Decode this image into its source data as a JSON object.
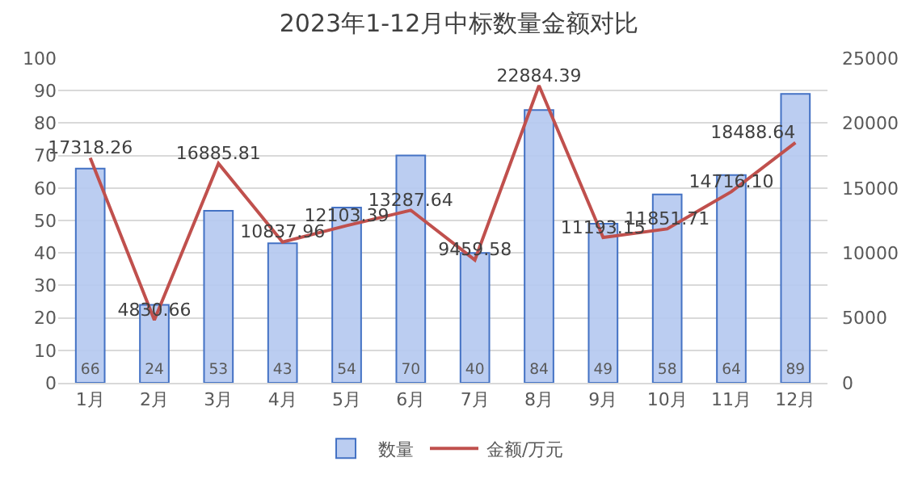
{
  "chart_data": {
    "type": "bar",
    "title": "2023年1-12月中标数量金额对比",
    "categories": [
      "1月",
      "2月",
      "3月",
      "4月",
      "5月",
      "6月",
      "7月",
      "8月",
      "9月",
      "10月",
      "11月",
      "12月"
    ],
    "series": [
      {
        "name": "数量",
        "color": "#4472c4",
        "values": [
          66,
          24,
          53,
          43,
          54,
          70,
          40,
          84,
          49,
          58,
          64,
          89
        ]
      },
      {
        "name": "金额/万元",
        "type": "line",
        "axis": "y2",
        "color": "#c0504d",
        "values": [
          17318.26,
          4830.66,
          16885.81,
          10837.96,
          12103.39,
          13287.64,
          9459.58,
          22884.39,
          11193.15,
          11851.71,
          14716.1,
          18488.64
        ],
        "value_labels": [
          "17318.26",
          "4830.66",
          "16885.81",
          "10837.96",
          "12103.39",
          "13287.64",
          "9459.58",
          "22884.39",
          "11193.15",
          "11851.71",
          "14716.10",
          "18488.64"
        ]
      }
    ],
    "ylim": [
      0,
      100
    ],
    "yticks": [
      0,
      10,
      20,
      30,
      40,
      50,
      60,
      70,
      80,
      90,
      100
    ],
    "y2lim": [
      0,
      25000
    ],
    "y2ticks": [
      0,
      5000,
      10000,
      15000,
      20000,
      25000
    ],
    "grid": "y",
    "legend": "bottom",
    "data_labels": true,
    "marker": "none",
    "line_style": "solid"
  }
}
